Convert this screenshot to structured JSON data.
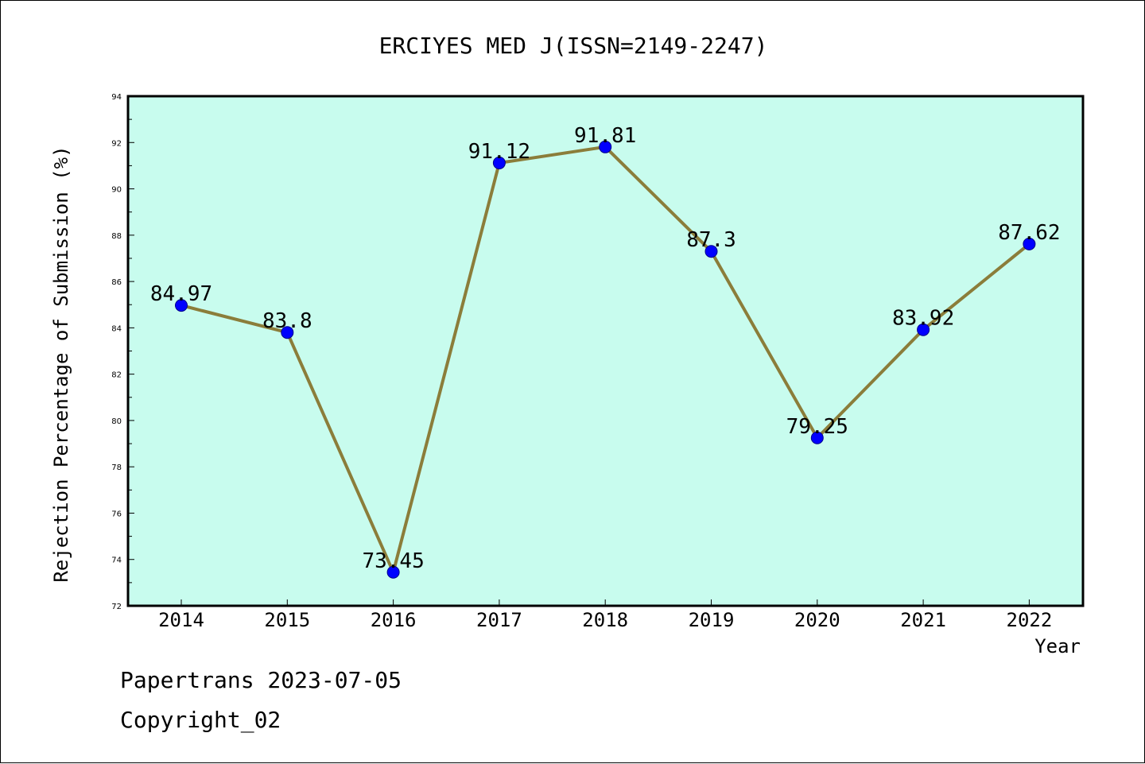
{
  "chart_data": {
    "type": "line",
    "title": "ERCIYES MED J(ISSN=2149-2247)",
    "xlabel": "Year",
    "ylabel": "Rejection Percentage of Submission (%)",
    "categories": [
      "2014",
      "2015",
      "2016",
      "2017",
      "2018",
      "2019",
      "2020",
      "2021",
      "2022"
    ],
    "values": [
      84.97,
      83.8,
      73.45,
      91.12,
      91.81,
      87.3,
      79.25,
      83.92,
      87.62
    ],
    "data_labels": [
      "84.97",
      "83.8",
      "73.45",
      "91.12",
      "91.81",
      "87.3",
      "79.25",
      "83.92",
      "87.62"
    ],
    "ylim": [
      72,
      94
    ],
    "yticks": [
      "72",
      "74",
      "76",
      "78",
      "80",
      "82",
      "84",
      "86",
      "88",
      "90",
      "92",
      "94"
    ],
    "grid": false,
    "legend": "none",
    "colors": {
      "plot_background": "#c8fcee",
      "line": "#8b7d3a",
      "marker": "#0000ff"
    }
  },
  "footer": {
    "line1": "Papertrans 2023-07-05",
    "line2": "Copyright_02"
  }
}
